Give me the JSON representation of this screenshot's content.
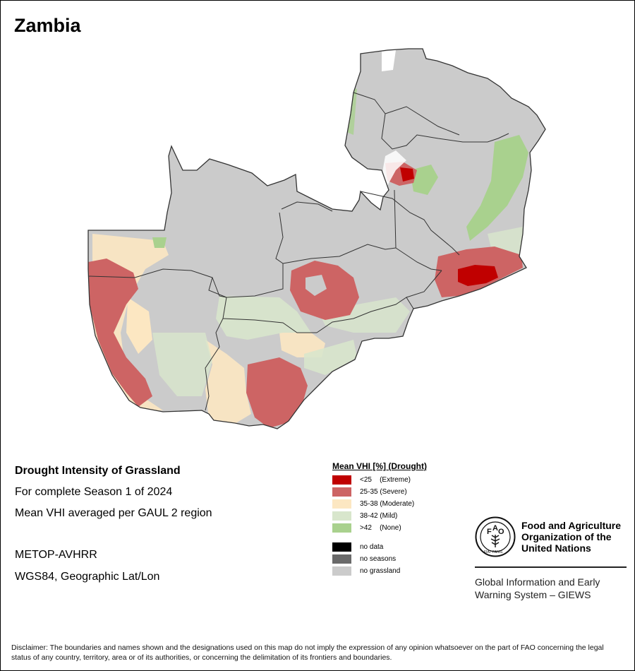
{
  "map": {
    "title": "Zambia",
    "colors": {
      "no_grassland": "#cbcbcb",
      "extreme": "#c00000",
      "severe": "#cd6464",
      "moderate": "#fce7c2",
      "mild": "#d8e6cc",
      "none": "#a9d18e",
      "no_data": "#000000",
      "no_seasons": "#6a6a6a",
      "border": "#333333"
    }
  },
  "info": {
    "heading": "Drought Intensity of Grassland",
    "season": "For complete Season 1 of 2024",
    "method": "Mean VHI averaged per GAUL 2 region",
    "sensor": "METOP-AVHRR",
    "projection": "WGS84, Geographic Lat/Lon"
  },
  "legend": {
    "title": "Mean VHI [%] (Drought)",
    "items": [
      {
        "label": "<25    (Extreme)",
        "color": "#c00000"
      },
      {
        "label": "25-35 (Severe)",
        "color": "#cd6464"
      },
      {
        "label": "35-38 (Moderate)",
        "color": "#fce7c2"
      },
      {
        "label": "38-42 (Mild)",
        "color": "#d8e6cc"
      },
      {
        "label": ">42    (None)",
        "color": "#a9d18e"
      }
    ],
    "extra": [
      {
        "label": "no data",
        "color": "#000000"
      },
      {
        "label": "no seasons",
        "color": "#6a6a6a"
      },
      {
        "label": "no grassland",
        "color": "#cbcbcb"
      }
    ]
  },
  "fao": {
    "org_line1": "Food and Agriculture",
    "org_line2": "Organization of the",
    "org_line3": "United Nations",
    "logo_text": "FIAT PANIS",
    "system_line1": "Global Information and Early",
    "system_line2": "Warning System – GIEWS"
  },
  "disclaimer": "Disclaimer: The boundaries and names shown and the designations used on this map do not imply the expression of any opinion whatsoever on the part of FAO concerning the legal status of any country, territory, area or of its authorities, or concerning the delimitation of its frontiers and boundaries."
}
